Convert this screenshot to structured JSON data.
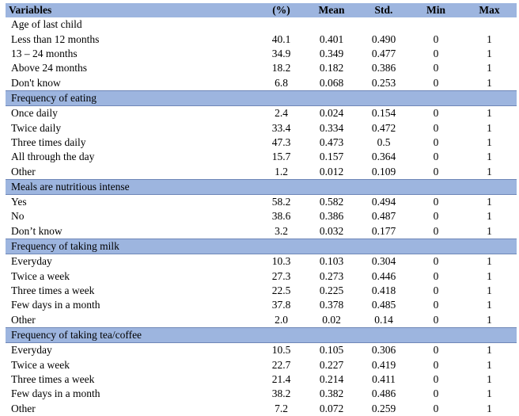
{
  "header": {
    "variables": "Variables",
    "pct": "(%)",
    "mean": "Mean",
    "std": "Std.",
    "min": "Min",
    "max": "Max"
  },
  "groups": [
    {
      "title": "Age of last child",
      "style": "plain",
      "rows": [
        {
          "label": "Less than 12 months",
          "pct": "40.1",
          "mean": "0.401",
          "std": "0.490",
          "min": "0",
          "max": "1"
        },
        {
          "label": "13 – 24 months",
          "pct": "34.9",
          "mean": "0.349",
          "std": "0.477",
          "min": "0",
          "max": "1"
        },
        {
          "label": "Above 24 months",
          "pct": "18.2",
          "mean": "0.182",
          "std": "0.386",
          "min": "0",
          "max": "1"
        },
        {
          "label": "Don't know",
          "pct": "6.8",
          "mean": "0.068",
          "std": "0.253",
          "min": "0",
          "max": "1"
        }
      ]
    },
    {
      "title": "Frequency of eating",
      "style": "section",
      "rows": [
        {
          "label": "Once daily",
          "pct": "2.4",
          "mean": "0.024",
          "std": "0.154",
          "min": "0",
          "max": "1"
        },
        {
          "label": "Twice daily",
          "pct": "33.4",
          "mean": "0.334",
          "std": "0.472",
          "min": "0",
          "max": "1"
        },
        {
          "label": "Three times daily",
          "pct": "47.3",
          "mean": "0.473",
          "std": "0.5",
          "min": "0",
          "max": "1"
        },
        {
          "label": "All through the day",
          "pct": "15.7",
          "mean": "0.157",
          "std": "0.364",
          "min": "0",
          "max": "1"
        },
        {
          "label": "Other",
          "pct": "1.2",
          "mean": "0.012",
          "std": "0.109",
          "min": "0",
          "max": "1"
        }
      ]
    },
    {
      "title": "Meals are nutritious intense",
      "style": "section",
      "rows": [
        {
          "label": "Yes",
          "pct": "58.2",
          "mean": "0.582",
          "std": "0.494",
          "min": "0",
          "max": "1"
        },
        {
          "label": "No",
          "pct": "38.6",
          "mean": "0.386",
          "std": "0.487",
          "min": "0",
          "max": "1"
        },
        {
          "label": "Don’t know",
          "pct": "3.2",
          "mean": "0.032",
          "std": "0.177",
          "min": "0",
          "max": "1"
        }
      ]
    },
    {
      "title": "Frequency of taking milk",
      "style": "section",
      "rows": [
        {
          "label": "Everyday",
          "pct": "10.3",
          "mean": "0.103",
          "std": "0.304",
          "min": "0",
          "max": "1"
        },
        {
          "label": "Twice a week",
          "pct": "27.3",
          "mean": "0.273",
          "std": "0.446",
          "min": "0",
          "max": "1"
        },
        {
          "label": "Three times a week",
          "pct": "22.5",
          "mean": "0.225",
          "std": "0.418",
          "min": "0",
          "max": "1"
        },
        {
          "label": "Few days in a month",
          "pct": "37.8",
          "mean": "0.378",
          "std": "0.485",
          "min": "0",
          "max": "1"
        },
        {
          "label": "Other",
          "pct": "2.0",
          "mean": "0.02",
          "std": "0.14",
          "min": "0",
          "max": "1"
        }
      ]
    },
    {
      "title": "Frequency of taking tea/coffee",
      "style": "section",
      "rows": [
        {
          "label": "Everyday",
          "pct": "10.5",
          "mean": "0.105",
          "std": "0.306",
          "min": "0",
          "max": "1"
        },
        {
          "label": "Twice a week",
          "pct": "22.7",
          "mean": "0.227",
          "std": "0.419",
          "min": "0",
          "max": "1"
        },
        {
          "label": "Three times a week",
          "pct": "21.4",
          "mean": "0.214",
          "std": "0.411",
          "min": "0",
          "max": "1"
        },
        {
          "label": "Few days in a month",
          "pct": "38.2",
          "mean": "0.382",
          "std": "0.486",
          "min": "0",
          "max": "1"
        },
        {
          "label": "Other",
          "pct": "7.2",
          "mean": "0.072",
          "std": "0.259",
          "min": "0",
          "max": "1"
        }
      ]
    }
  ],
  "colors": {
    "header_bg": "#9db5df",
    "section_border": "#6f87b7"
  }
}
